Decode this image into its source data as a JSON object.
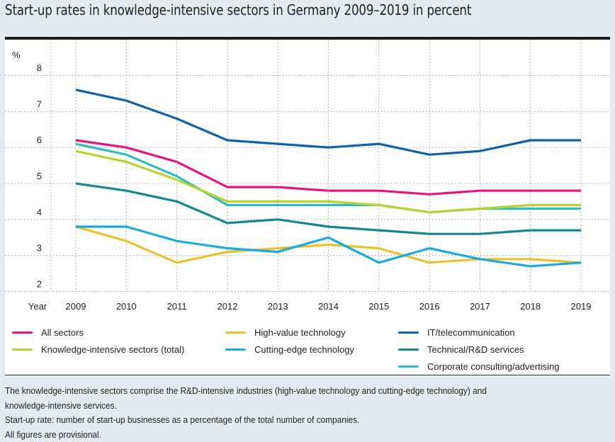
{
  "title": "Start-up rates in knowledge-intensive sectors in Germany 2009–2019 in percent",
  "chart_data": {
    "type": "line",
    "title": "Start-up rates in knowledge-intensive sectors in Germany 2009–2019 in percent",
    "xlabel": "Year",
    "ylabel": "%",
    "ylim": [
      2,
      8
    ],
    "yticks": [
      2,
      3,
      4,
      5,
      6,
      7,
      8
    ],
    "grid": true,
    "legend_position": "bottom",
    "x": [
      "2009",
      "2010",
      "2011",
      "2012",
      "2013",
      "2014",
      "2015",
      "2016",
      "2017",
      "2018",
      "2019"
    ],
    "series": [
      {
        "name": "All sectors",
        "color": "#e6147e",
        "values": [
          6.2,
          6.0,
          5.6,
          4.9,
          4.9,
          4.8,
          4.8,
          4.7,
          4.8,
          4.8,
          4.8
        ]
      },
      {
        "name": "Knowledge-intensive sectors (total)",
        "color": "#b9d234",
        "values": [
          5.9,
          5.6,
          5.1,
          4.5,
          4.5,
          4.5,
          4.4,
          4.2,
          4.3,
          4.4,
          4.4
        ]
      },
      {
        "name": "High-value technology",
        "color": "#e9c12a",
        "values": [
          3.8,
          3.4,
          2.8,
          3.1,
          3.2,
          3.3,
          3.2,
          2.8,
          2.9,
          2.9,
          2.8
        ]
      },
      {
        "name": "Cutting-edge technology",
        "color": "#1aaae2",
        "values": [
          3.8,
          3.8,
          3.4,
          3.2,
          3.1,
          3.5,
          2.8,
          3.2,
          2.9,
          2.7,
          2.8
        ]
      },
      {
        "name": "IT/telecommunication",
        "color": "#0e62a8",
        "values": [
          7.6,
          7.3,
          6.8,
          6.2,
          6.1,
          6.0,
          6.1,
          5.8,
          5.9,
          6.2,
          6.2
        ]
      },
      {
        "name": "Technical/R&D services",
        "color": "#12878f",
        "values": [
          5.0,
          4.8,
          4.5,
          3.9,
          4.0,
          3.8,
          3.7,
          3.6,
          3.6,
          3.7,
          3.7
        ]
      },
      {
        "name": "Corporate consulting/advertising",
        "color": "#2ebcc4",
        "values": [
          6.1,
          5.8,
          5.2,
          4.4,
          4.4,
          4.4,
          4.4,
          4.2,
          4.3,
          4.3,
          4.3
        ]
      }
    ]
  },
  "legend": [
    {
      "label": "All sectors",
      "color": "#e6147e"
    },
    {
      "label": "Knowledge-intensive sectors (total)",
      "color": "#b9d234"
    },
    {
      "label": "High-value technology",
      "color": "#e9c12a"
    },
    {
      "label": "Cutting-edge technology",
      "color": "#1aaae2"
    },
    {
      "label": "IT/telecommunication",
      "color": "#0e62a8"
    },
    {
      "label": "Technical/R&D services",
      "color": "#12878f"
    },
    {
      "label": "Corporate consulting/advertising",
      "color": "#2ebcc4"
    }
  ],
  "notes": [
    "The knowledge-intensive sectors comprise the R&D-intensive industries (high-value technology and cutting-edge technology) and",
    "knowledge-intensive services.",
    "Start-up rate: number of start-up businesses as a percentage of the total number of companies.",
    "All figures are provisional."
  ]
}
